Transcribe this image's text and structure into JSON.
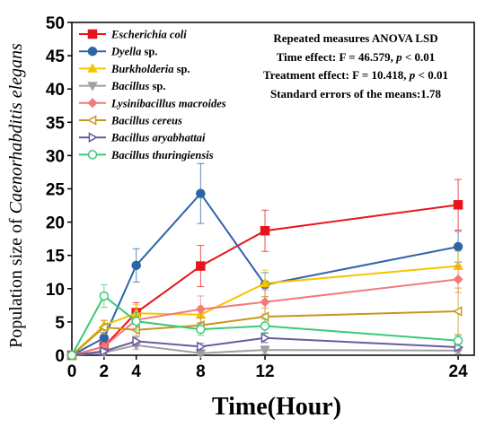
{
  "chart_data": {
    "type": "line",
    "xlabel": "Time(Hour)",
    "ylabel_prefix": "Population size of ",
    "ylabel_italic": "Caenorhabditis elegans",
    "xlim": [
      0,
      25
    ],
    "ylim": [
      0,
      50
    ],
    "x_ticks": [
      0,
      2,
      4,
      8,
      12,
      24
    ],
    "y_ticks": [
      0,
      5,
      10,
      15,
      20,
      25,
      30,
      35,
      40,
      45,
      50
    ],
    "x": [
      0,
      2,
      4,
      8,
      12,
      24
    ],
    "legend_position": "top-left",
    "series": [
      {
        "name": "Escherichia coli",
        "suffix": "",
        "color": "#e8141c",
        "marker": "square",
        "filled": true,
        "values": [
          0,
          1.3,
          6.4,
          13.4,
          18.7,
          22.6
        ],
        "errors": [
          0,
          0.5,
          1.5,
          3.1,
          3.1,
          3.8
        ]
      },
      {
        "name": "Dyella",
        "suffix": " sp.",
        "color": "#2e64a8",
        "marker": "circle",
        "filled": true,
        "values": [
          0,
          2.6,
          13.5,
          24.3,
          10.6,
          16.3
        ],
        "errors": [
          0,
          0.8,
          2.5,
          4.5,
          1.8,
          2.3
        ]
      },
      {
        "name": "Burkholderia",
        "suffix": " sp.",
        "color": "#f5c400",
        "marker": "triangle-up",
        "filled": true,
        "values": [
          0,
          4.5,
          6.3,
          6.1,
          10.8,
          13.4
        ],
        "errors": [
          0,
          0.8,
          1.3,
          1.3,
          2.0,
          2.2
        ]
      },
      {
        "name": "Bacillus",
        "suffix": " sp.",
        "color": "#a0a0a0",
        "marker": "triangle-down",
        "filled": true,
        "values": [
          0,
          0.4,
          1.5,
          0.3,
          0.8,
          0.7
        ],
        "errors": [
          0,
          0.3,
          0.6,
          0.3,
          0.6,
          0.5
        ]
      },
      {
        "name": "Lysinibacillus macroides",
        "suffix": "",
        "color": "#f47a7a",
        "marker": "diamond",
        "filled": true,
        "values": [
          0,
          1.3,
          5.3,
          6.9,
          8.0,
          11.4
        ],
        "errors": [
          0,
          0.5,
          1.5,
          2.0,
          1.8,
          2.0
        ]
      },
      {
        "name": "Bacillus cereus",
        "suffix": "",
        "color": "#c8961e",
        "marker": "triangle-left",
        "filled": false,
        "values": [
          0,
          4.2,
          3.8,
          4.5,
          5.8,
          6.6
        ],
        "errors": [
          0,
          1.0,
          0.9,
          1.1,
          1.3,
          3.5
        ]
      },
      {
        "name": "Bacillus aryabhattai",
        "suffix": "",
        "color": "#6a5aa0",
        "marker": "triangle-right",
        "filled": false,
        "values": [
          0,
          0.6,
          2.1,
          1.3,
          2.6,
          1.2
        ],
        "errors": [
          0,
          0.4,
          0.6,
          0.5,
          0.7,
          0.5
        ]
      },
      {
        "name": "Bacillus thuringiensis",
        "suffix": "",
        "color": "#3cc878",
        "marker": "circle",
        "filled": false,
        "values": [
          0,
          8.9,
          5.1,
          3.9,
          4.4,
          2.2
        ],
        "errors": [
          0,
          1.7,
          1.3,
          0.9,
          1.0,
          0.8
        ]
      }
    ],
    "annotation": {
      "line1": "Repeated measures ANOVA LSD",
      "line2_pre": "Time effect: F = 46.579, ",
      "line3_pre": "Treatment effect: F = 10.418, ",
      "p_text": "p",
      "p_post": " < 0.01",
      "line4": "Standard errors of the means:1.78"
    }
  }
}
